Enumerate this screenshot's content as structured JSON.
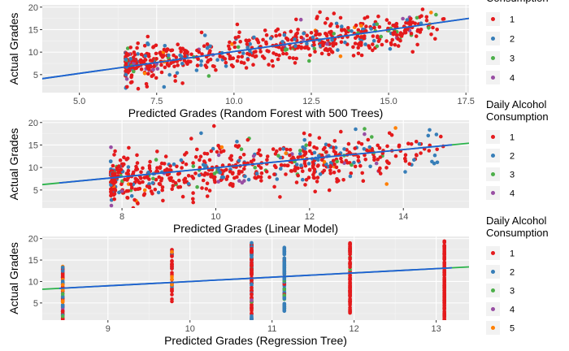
{
  "colors": {
    "panel_bg": "#ebebeb",
    "grid_major": "#ffffff",
    "legend_key_bg": "#f2f2f2",
    "fit_line_blue": "#1f5fd6",
    "fit_line_green": "#2ab24a"
  },
  "chart_data": [
    {
      "type": "scatter",
      "xlabel": "Predicted Grades (Random Forest with 500 Trees)",
      "ylabel": "Actual Grades",
      "xlim": [
        3.8,
        17.6
      ],
      "ylim": [
        1,
        20.5
      ],
      "xticks": [
        5.0,
        7.5,
        10.0,
        12.5,
        15.0,
        17.5
      ],
      "xtick_labels": [
        "5.0",
        "7.5",
        "10.0",
        "12.5",
        "15.0",
        "17.5"
      ],
      "yticks": [
        5,
        10,
        15,
        20
      ],
      "ytick_labels": [
        "5",
        "10",
        "15",
        "20"
      ],
      "grid": true,
      "legend": {
        "title_lines": [
          "Consumption"
        ],
        "position": "right",
        "entries": [
          "1",
          "2",
          "3",
          "4"
        ]
      },
      "series_colors": [
        "#e41a1c",
        "#377eb8",
        "#4daf4a",
        "#984ea3",
        "#ff7f00"
      ],
      "fit_line": {
        "x": [
          3.8,
          17.6
        ],
        "y": [
          4.1,
          17.5
        ]
      },
      "point_model": {
        "kind": "continuous",
        "n": 650,
        "x_range": [
          4.6,
          17.2
        ],
        "y_intercept": 0.8,
        "y_slope": 0.92,
        "noise": 2.3,
        "seed": 11
      }
    },
    {
      "type": "scatter",
      "xlabel": "Predicted Grades (Linear Model)",
      "ylabel": "Actual Grades",
      "xlim": [
        6.3,
        15.4
      ],
      "ylim": [
        1,
        20.5
      ],
      "xticks": [
        8,
        10,
        12,
        14
      ],
      "xtick_labels": [
        "8",
        "10",
        "12",
        "14"
      ],
      "yticks": [
        5,
        10,
        15,
        20
      ],
      "ytick_labels": [
        "5",
        "10",
        "15",
        "20"
      ],
      "grid": true,
      "legend": {
        "title_lines": [
          "Daily Alcohol",
          "Consumption"
        ],
        "position": "right",
        "entries": [
          "1",
          "2",
          "3",
          "4"
        ]
      },
      "series_colors": [
        "#e41a1c",
        "#377eb8",
        "#4daf4a",
        "#984ea3",
        "#ff7f00"
      ],
      "fit_line": {
        "x": [
          6.3,
          15.4
        ],
        "y": [
          6.2,
          15.4
        ]
      },
      "point_model": {
        "kind": "continuous",
        "n": 650,
        "x_range": [
          6.5,
          14.9
        ],
        "y_intercept": -1.2,
        "y_slope": 1.05,
        "noise": 3.1,
        "seed": 23
      }
    },
    {
      "type": "scatter",
      "xlabel": "Predicted Grades (Regression Tree)",
      "ylabel": "Actual Grades",
      "xlim": [
        8.2,
        13.4
      ],
      "ylim": [
        1,
        20.5
      ],
      "xticks": [
        9,
        10,
        11,
        12,
        13
      ],
      "xtick_labels": [
        "9",
        "10",
        "11",
        "12",
        "13"
      ],
      "yticks": [
        5,
        10,
        15,
        20
      ],
      "ytick_labels": [
        "5",
        "10",
        "15",
        "20"
      ],
      "grid": true,
      "legend": {
        "title_lines": [
          "Daily Alcohol",
          "Consumption"
        ],
        "position": "right",
        "entries": [
          "1",
          "2",
          "3",
          "4",
          "5"
        ]
      },
      "series_colors": [
        "#e41a1c",
        "#377eb8",
        "#4daf4a",
        "#984ea3",
        "#ff7f00"
      ],
      "fit_line": {
        "x": [
          8.2,
          13.4
        ],
        "y": [
          8.2,
          13.4
        ]
      },
      "point_model": {
        "kind": "columns",
        "columns": [
          {
            "x": 8.45,
            "ymin": 1,
            "ymax": 13.5,
            "n": 70,
            "color_weights": [
              0.45,
              0.3,
              0.08,
              0.05,
              0.12
            ]
          },
          {
            "x": 9.78,
            "ymin": 5,
            "ymax": 17.5,
            "n": 40,
            "color_weights": [
              0.8,
              0.1,
              0.05,
              0.0,
              0.05
            ]
          },
          {
            "x": 10.75,
            "ymin": 1,
            "ymax": 19,
            "n": 120,
            "color_weights": [
              0.65,
              0.25,
              0.06,
              0.04,
              0.0
            ]
          },
          {
            "x": 11.15,
            "ymin": 3,
            "ymax": 18,
            "n": 90,
            "color_weights": [
              0.05,
              0.9,
              0.05,
              0.0,
              0.0
            ]
          },
          {
            "x": 11.95,
            "ymin": 2,
            "ymax": 19,
            "n": 90,
            "color_weights": [
              0.9,
              0.05,
              0.05,
              0.0,
              0.0
            ]
          },
          {
            "x": 13.1,
            "ymin": 1,
            "ymax": 19.5,
            "n": 110,
            "color_weights": [
              1.0,
              0.0,
              0.0,
              0.0,
              0.0
            ]
          }
        ]
      }
    }
  ]
}
